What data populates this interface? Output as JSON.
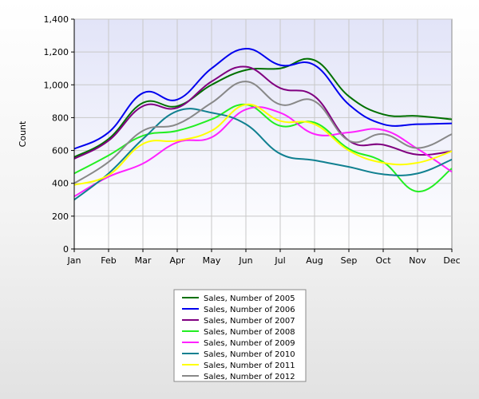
{
  "chart_data": {
    "type": "line",
    "title": "",
    "xlabel": "",
    "ylabel": "Count",
    "ylim": [
      0,
      1400
    ],
    "yticks": [
      0,
      200,
      400,
      600,
      800,
      1000,
      1200,
      1400
    ],
    "ytick_labels": [
      "0",
      "200",
      "400",
      "600",
      "800",
      "1,000",
      "1,200",
      "1,400"
    ],
    "categories": [
      "Jan",
      "Feb",
      "Mar",
      "Apr",
      "May",
      "Jun",
      "Jul",
      "Aug",
      "Sep",
      "Oct",
      "Nov",
      "Dec"
    ],
    "grid": true,
    "legend_position": "bottom-center",
    "series": [
      {
        "name": "Sales, Number of 2005",
        "color": "#007000",
        "values": [
          560,
          670,
          890,
          870,
          1000,
          1090,
          1100,
          1150,
          930,
          820,
          810,
          790
        ]
      },
      {
        "name": "Sales, Number of 2006",
        "color": "#0000ee",
        "values": [
          610,
          710,
          950,
          910,
          1100,
          1220,
          1120,
          1120,
          880,
          760,
          760,
          765
        ]
      },
      {
        "name": "Sales, Number of 2007",
        "color": "#800080",
        "values": [
          550,
          660,
          870,
          860,
          1020,
          1110,
          980,
          930,
          660,
          635,
          575,
          595
        ]
      },
      {
        "name": "Sales, Number of 2008",
        "color": "#22ee22",
        "values": [
          460,
          570,
          690,
          720,
          790,
          880,
          750,
          770,
          610,
          530,
          350,
          490
        ]
      },
      {
        "name": "Sales, Number of 2009",
        "color": "#ff22ff",
        "values": [
          320,
          440,
          520,
          650,
          680,
          850,
          830,
          700,
          710,
          725,
          610,
          470
        ]
      },
      {
        "name": "Sales, Number of 2010",
        "color": "#108090",
        "values": [
          300,
          460,
          670,
          840,
          830,
          760,
          580,
          540,
          500,
          455,
          460,
          545
        ]
      },
      {
        "name": "Sales, Number of 2011",
        "color": "#ffff00",
        "values": [
          390,
          450,
          640,
          660,
          720,
          880,
          780,
          760,
          600,
          525,
          525,
          595
        ]
      },
      {
        "name": "Sales, Number of 2012",
        "color": "#888888",
        "values": [
          400,
          530,
          720,
          760,
          890,
          1020,
          880,
          900,
          660,
          700,
          615,
          700
        ]
      }
    ]
  }
}
